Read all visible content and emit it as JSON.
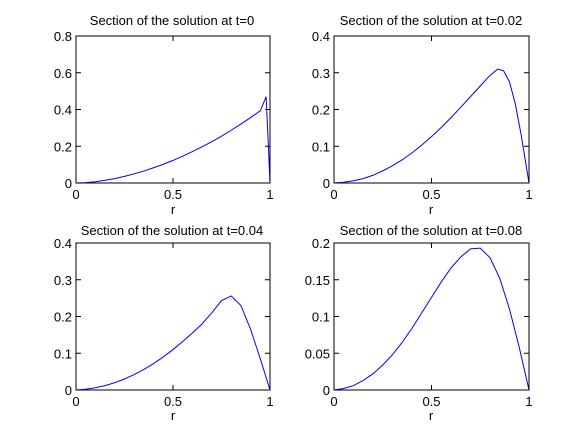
{
  "figure": {
    "background": "#ffffff",
    "axis_color": "#000000",
    "line_color": "#0000ff"
  },
  "chart_data": [
    {
      "type": "line",
      "title": "Section of the solution at t=0",
      "xlabel": "r",
      "ylabel": "",
      "xlim": [
        0,
        1
      ],
      "ylim": [
        0,
        0.8
      ],
      "xticks": [
        0,
        0.5,
        1
      ],
      "xtick_labels": [
        "0",
        "0.5",
        "1"
      ],
      "yticks": [
        0,
        0.2,
        0.4,
        0.6,
        0.8
      ],
      "ytick_labels": [
        "0",
        "0.2",
        "0.4",
        "0.6",
        "0.8"
      ],
      "grid": false,
      "series": [
        {
          "color": "#0000ff",
          "x": [
            0,
            0.05,
            0.1,
            0.15,
            0.2,
            0.25,
            0.3,
            0.35,
            0.4,
            0.45,
            0.5,
            0.55,
            0.6,
            0.65,
            0.7,
            0.75,
            0.8,
            0.85,
            0.9,
            0.95,
            0.98,
            0.99,
            1.0
          ],
          "y": [
            0,
            0.002,
            0.007,
            0.015,
            0.024,
            0.036,
            0.05,
            0.065,
            0.083,
            0.102,
            0.123,
            0.146,
            0.171,
            0.197,
            0.225,
            0.255,
            0.287,
            0.321,
            0.356,
            0.393,
            0.47,
            0.24,
            0
          ]
        }
      ]
    },
    {
      "type": "line",
      "title": "Section of the solution at t=0.02",
      "xlabel": "r",
      "ylabel": "",
      "xlim": [
        0,
        1
      ],
      "ylim": [
        0,
        0.4
      ],
      "xticks": [
        0,
        0.5,
        1
      ],
      "xtick_labels": [
        "0",
        "0.5",
        "1"
      ],
      "yticks": [
        0,
        0.1,
        0.2,
        0.3,
        0.4
      ],
      "ytick_labels": [
        "0",
        "0.1",
        "0.2",
        "0.3",
        "0.4"
      ],
      "grid": false,
      "series": [
        {
          "color": "#0000ff",
          "x": [
            0,
            0.05,
            0.1,
            0.15,
            0.2,
            0.25,
            0.3,
            0.35,
            0.4,
            0.45,
            0.5,
            0.55,
            0.6,
            0.65,
            0.7,
            0.75,
            0.8,
            0.84,
            0.87,
            0.9,
            0.93,
            0.96,
            0.98,
            1.0
          ],
          "y": [
            0,
            0.002,
            0.006,
            0.012,
            0.021,
            0.033,
            0.047,
            0.063,
            0.082,
            0.103,
            0.126,
            0.151,
            0.178,
            0.206,
            0.235,
            0.264,
            0.293,
            0.31,
            0.305,
            0.275,
            0.215,
            0.13,
            0.065,
            0
          ]
        }
      ]
    },
    {
      "type": "line",
      "title": "Section of the solution at t=0.04",
      "xlabel": "r",
      "ylabel": "",
      "xlim": [
        0,
        1
      ],
      "ylim": [
        0,
        0.4
      ],
      "xticks": [
        0,
        0.5,
        1
      ],
      "xtick_labels": [
        "0",
        "0.5",
        "1"
      ],
      "yticks": [
        0,
        0.1,
        0.2,
        0.3,
        0.4
      ],
      "ytick_labels": [
        "0",
        "0.1",
        "0.2",
        "0.3",
        "0.4"
      ],
      "grid": false,
      "series": [
        {
          "color": "#0000ff",
          "x": [
            0,
            0.05,
            0.1,
            0.15,
            0.2,
            0.25,
            0.3,
            0.35,
            0.4,
            0.45,
            0.5,
            0.55,
            0.6,
            0.65,
            0.7,
            0.75,
            0.8,
            0.85,
            0.9,
            0.95,
            1.0
          ],
          "y": [
            0,
            0.002,
            0.006,
            0.012,
            0.02,
            0.03,
            0.042,
            0.056,
            0.072,
            0.09,
            0.11,
            0.132,
            0.155,
            0.18,
            0.21,
            0.243,
            0.256,
            0.23,
            0.165,
            0.085,
            0
          ]
        }
      ]
    },
    {
      "type": "line",
      "title": "Section of the solution at t=0.08",
      "xlabel": "r",
      "ylabel": "",
      "xlim": [
        0,
        1
      ],
      "ylim": [
        0,
        0.2
      ],
      "xticks": [
        0,
        0.5,
        1
      ],
      "xtick_labels": [
        "0",
        "0.5",
        "1"
      ],
      "yticks": [
        0,
        0.05,
        0.1,
        0.15,
        0.2
      ],
      "ytick_labels": [
        "0",
        "0.05",
        "0.1",
        "0.15",
        "0.2"
      ],
      "grid": false,
      "series": [
        {
          "color": "#0000ff",
          "x": [
            0,
            0.05,
            0.1,
            0.15,
            0.2,
            0.25,
            0.3,
            0.35,
            0.4,
            0.45,
            0.5,
            0.55,
            0.6,
            0.65,
            0.7,
            0.75,
            0.8,
            0.85,
            0.9,
            0.95,
            1.0
          ],
          "y": [
            0,
            0.002,
            0.006,
            0.013,
            0.022,
            0.034,
            0.048,
            0.065,
            0.084,
            0.105,
            0.126,
            0.147,
            0.166,
            0.181,
            0.192,
            0.193,
            0.18,
            0.152,
            0.11,
            0.058,
            0
          ]
        }
      ]
    }
  ]
}
